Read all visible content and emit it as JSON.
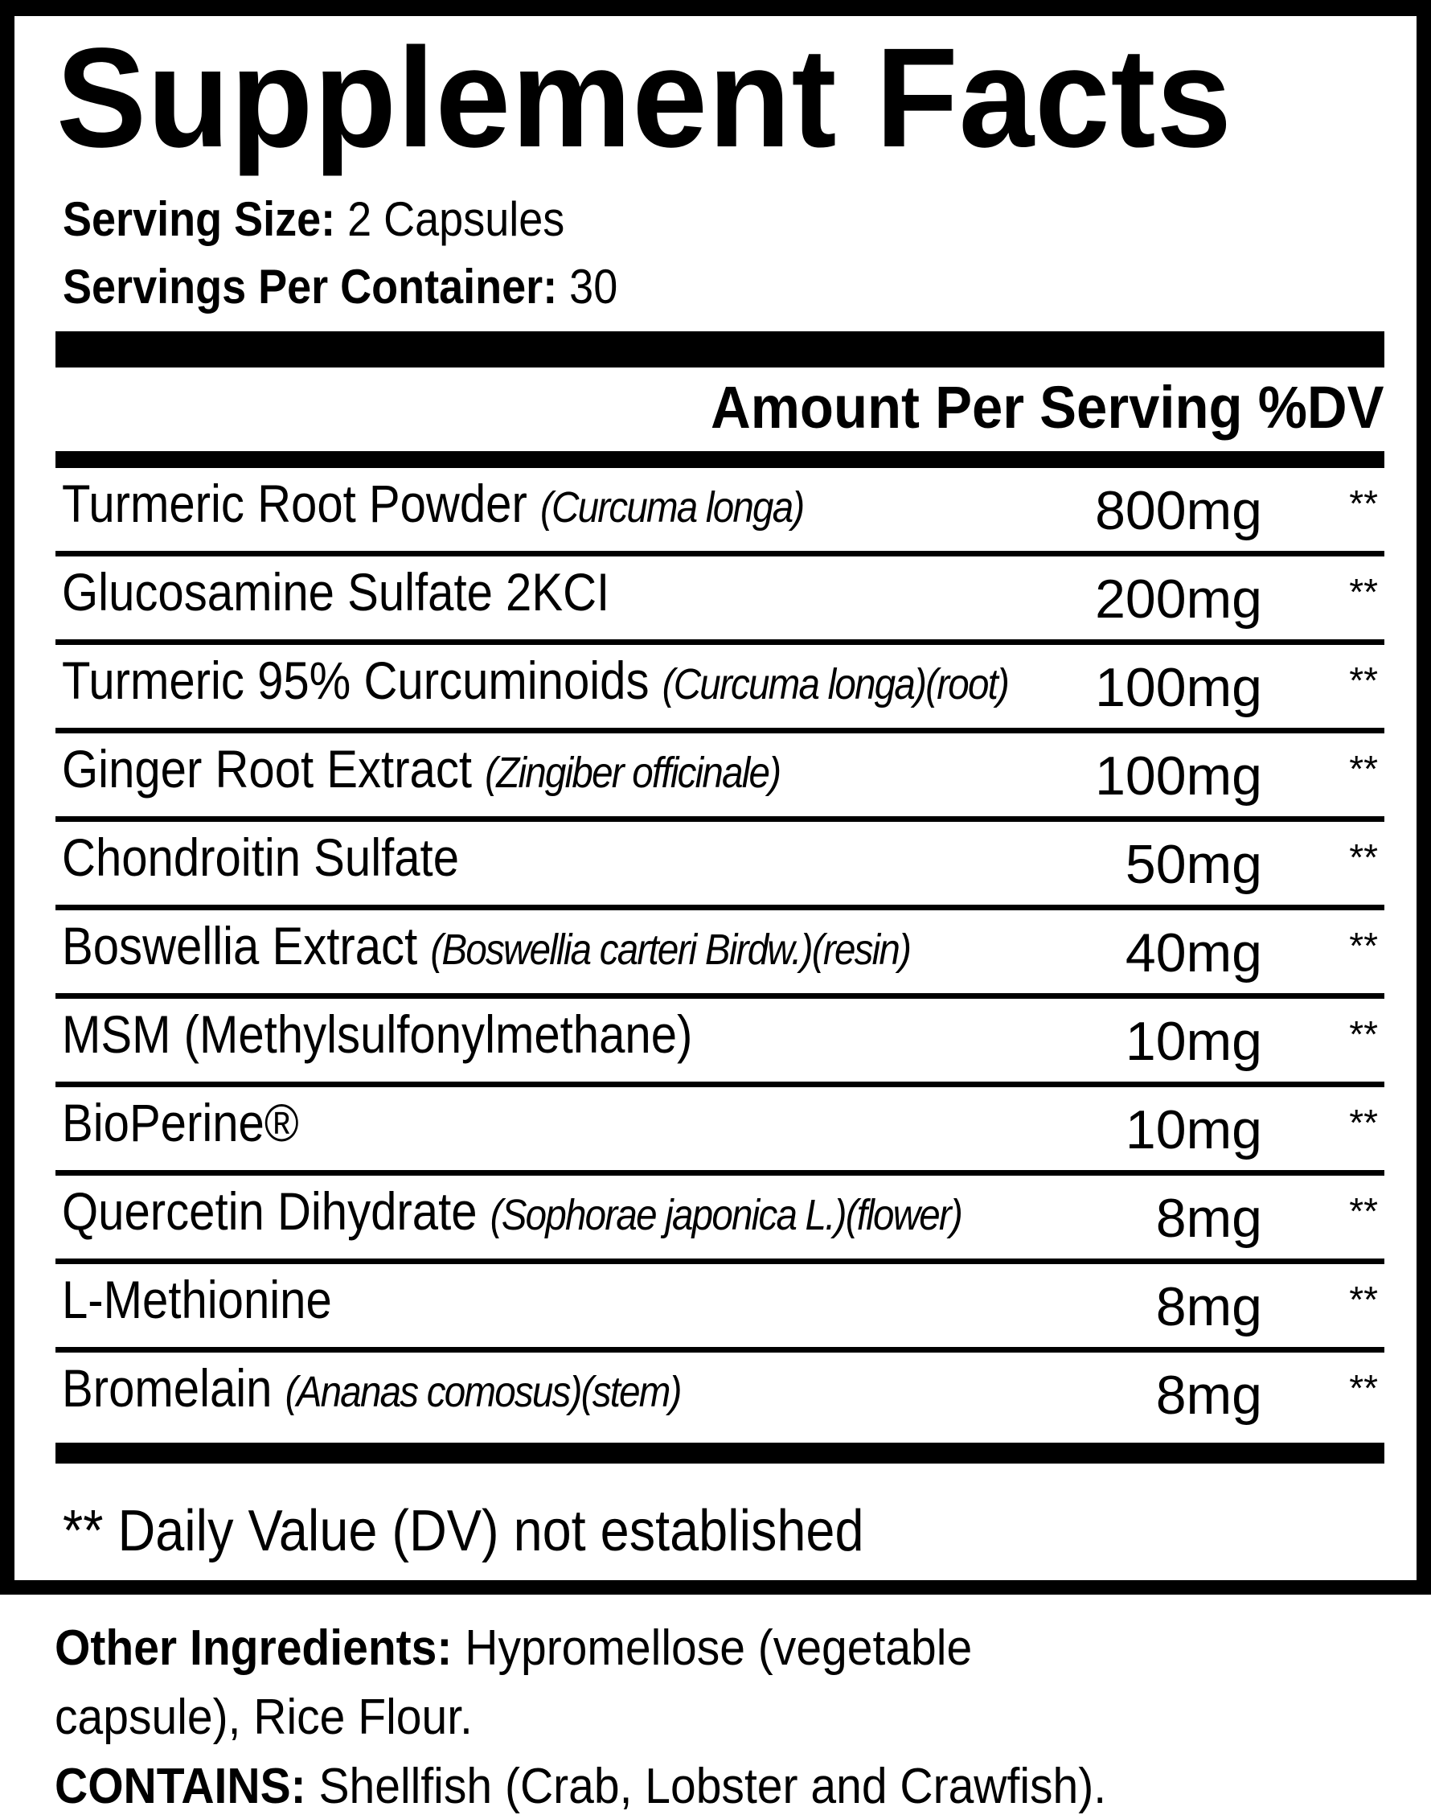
{
  "title": "Supplement Facts",
  "serving_size": {
    "label": "Serving Size:",
    "value": "2 Capsules"
  },
  "servings_per_container": {
    "label": "Servings Per Container:",
    "value": "30"
  },
  "column_header": "Amount Per Serving %DV",
  "ingredients": [
    {
      "name": "Turmeric Root Powder",
      "detail": "(Curcuma longa)",
      "amount": "800mg",
      "dv": "**"
    },
    {
      "name": "Glucosamine Sulfate 2KCI",
      "detail": "",
      "amount": "200mg",
      "dv": "**"
    },
    {
      "name": "Turmeric 95% Curcuminoids",
      "detail": "(Curcuma longa)(root)",
      "amount": "100mg",
      "dv": "**"
    },
    {
      "name": "Ginger Root Extract",
      "detail": "(Zingiber officinale)",
      "amount": "100mg",
      "dv": "**"
    },
    {
      "name": "Chondroitin Sulfate",
      "detail": "",
      "amount": "50mg",
      "dv": "**"
    },
    {
      "name": "Boswellia Extract",
      "detail": "(Boswellia carteri Birdw.)(resin)",
      "amount": "40mg",
      "dv": "**"
    },
    {
      "name": "MSM (Methylsulfonylmethane)",
      "detail": "",
      "amount": "10mg",
      "dv": "**"
    },
    {
      "name": "BioPerine®",
      "detail": "",
      "amount": "10mg",
      "dv": "**"
    },
    {
      "name": "Quercetin Dihydrate",
      "detail": "(Sophorae japonica L.)(flower)",
      "amount": "8mg",
      "dv": "**"
    },
    {
      "name": "L-Methionine",
      "detail": "",
      "amount": "8mg",
      "dv": "**"
    },
    {
      "name": "Bromelain",
      "detail": "(Ananas comosus)(stem)",
      "amount": "8mg",
      "dv": "**"
    }
  ],
  "footnote": "** Daily Value (DV) not established",
  "other_ingredients": {
    "label": "Other Ingredients:",
    "line1": "Hypromellose (vegetable",
    "line2": "capsule), Rice Flour."
  },
  "contains": {
    "label": "CONTAINS:",
    "value": "Shellfish (Crab, Lobster and Crawfish)."
  }
}
